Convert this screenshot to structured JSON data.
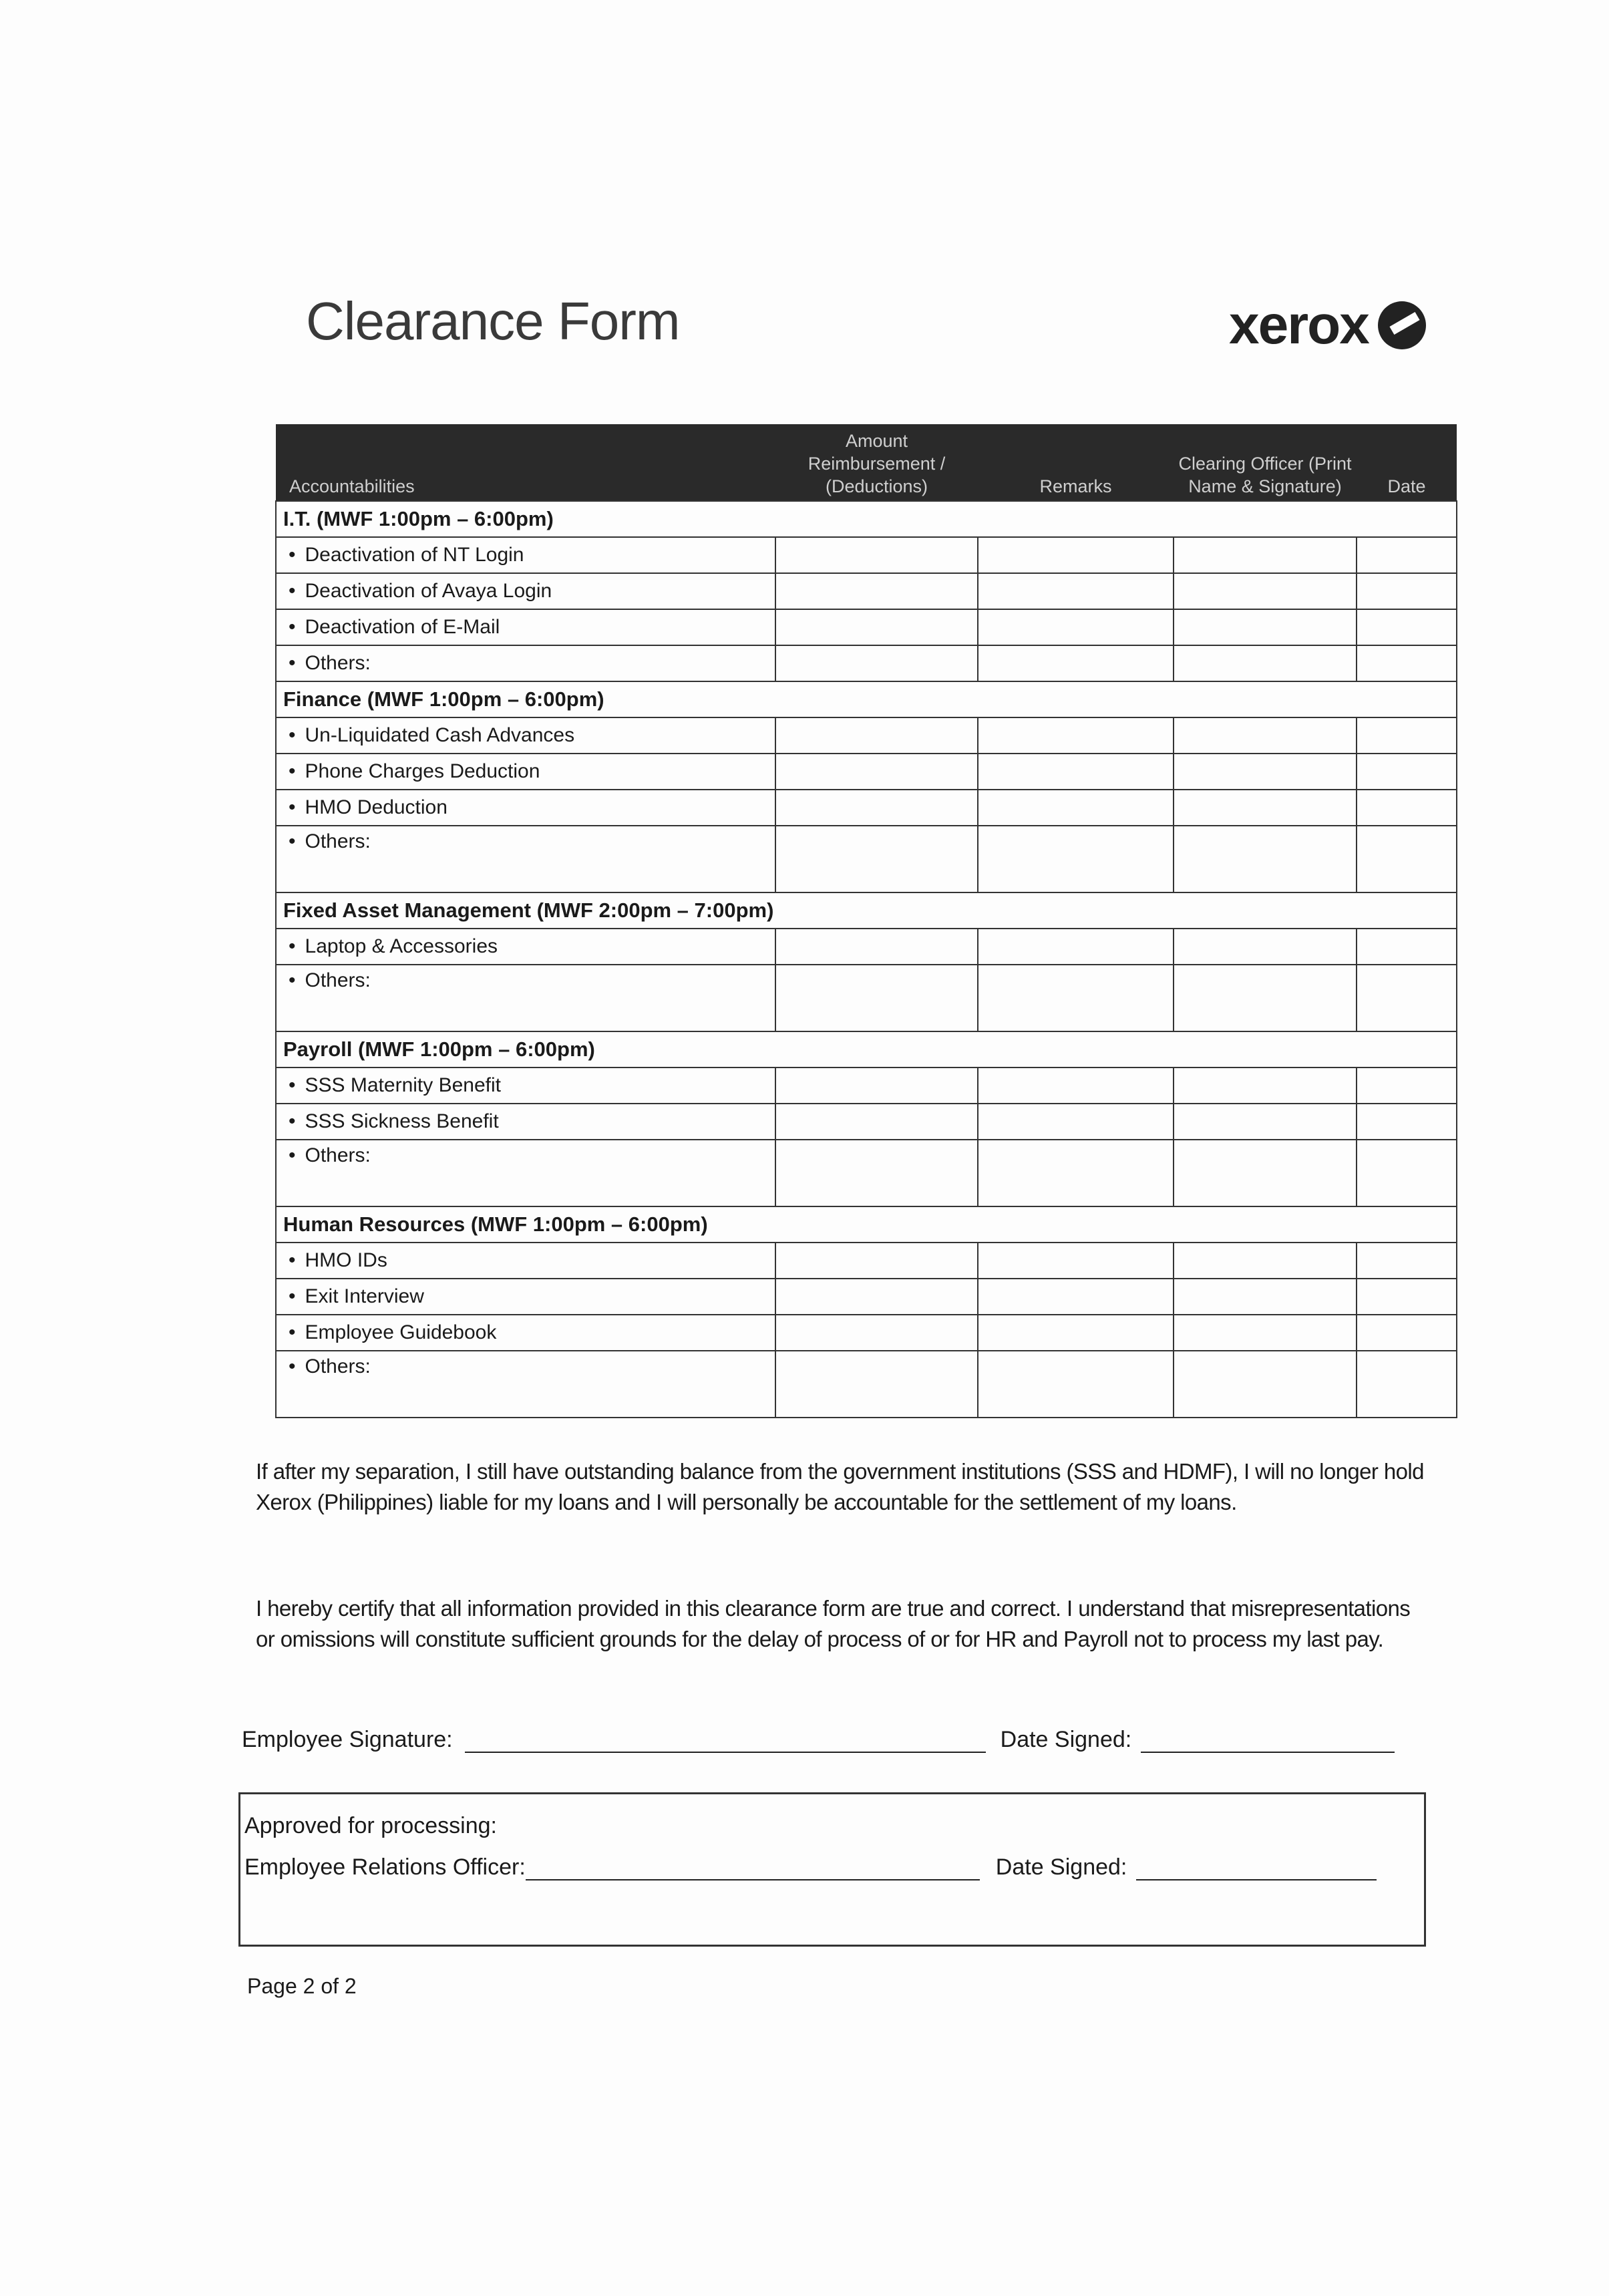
{
  "title": "Clearance Form",
  "logo": {
    "text": "xerox",
    "icon": "xerox-sphere-icon"
  },
  "table": {
    "headers": [
      "Accountabilities",
      "Amount Reimbursement / (Deductions)",
      "Remarks",
      "Clearing Officer (Print Name & Signature)",
      "Date"
    ],
    "sections": [
      {
        "title": "I.T. (MWF 1:00pm – 6:00pm)",
        "items": [
          "Deactivation of NT Login",
          "Deactivation of Avaya Login",
          "Deactivation of E-Mail",
          "Others:"
        ],
        "others_tall": false
      },
      {
        "title": "Finance (MWF 1:00pm – 6:00pm)",
        "items": [
          "Un-Liquidated Cash Advances",
          "Phone Charges Deduction",
          "HMO Deduction",
          "Others:"
        ],
        "others_tall": true
      },
      {
        "title": "Fixed Asset Management (MWF 2:00pm – 7:00pm)",
        "items": [
          "Laptop & Accessories",
          "Others:"
        ],
        "others_tall": true
      },
      {
        "title": "Payroll (MWF 1:00pm – 6:00pm)",
        "items": [
          "SSS Maternity Benefit",
          "SSS Sickness Benefit",
          "Others:"
        ],
        "others_tall": true
      },
      {
        "title": "Human Resources (MWF 1:00pm – 6:00pm)",
        "items": [
          "HMO IDs",
          "Exit Interview",
          "Employee Guidebook",
          "Others:"
        ],
        "others_tall": true
      }
    ]
  },
  "paragraphs": [
    "If after my separation, I still have outstanding balance from the government institutions (SSS and HDMF), I will no longer hold Xerox (Philippines) liable for my loans and I will personally be accountable for the settlement of my loans.",
    "I hereby certify that all information provided in this clearance form are true and correct. I understand that misrepresentations or omissions will constitute sufficient grounds for the delay of process of or for HR and Payroll not to process my last pay."
  ],
  "signature": {
    "employee_label": "Employee Signature:",
    "date_label": "Date Signed:"
  },
  "approval": {
    "heading": "Approved for processing:",
    "officer_label": "Employee Relations Officer:",
    "date_label": "Date Signed:"
  },
  "footer": {
    "page": "Page 2 of 2"
  }
}
